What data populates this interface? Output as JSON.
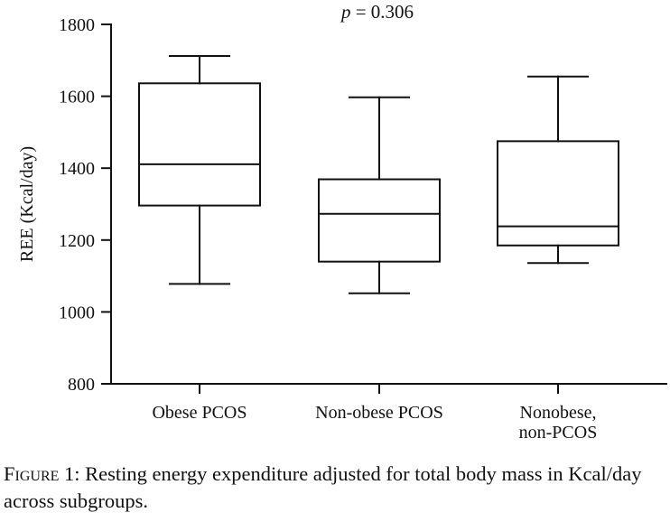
{
  "chart_data": {
    "type": "box",
    "annotation": {
      "prefix": "p",
      "text": " = 0.306"
    },
    "ylabel": "REE (Kcal/day)",
    "ylim": [
      800,
      1800
    ],
    "yticks": [
      800,
      1000,
      1200,
      1400,
      1600,
      1800
    ],
    "grid": false,
    "categories": [
      [
        "Obese PCOS"
      ],
      [
        "Non-obese PCOS"
      ],
      [
        "Nonobese,",
        "non-PCOS"
      ]
    ],
    "boxes": [
      {
        "min": 1078,
        "q1": 1296,
        "median": 1411,
        "q3": 1636,
        "max": 1712
      },
      {
        "min": 1052,
        "q1": 1140,
        "median": 1273,
        "q3": 1369,
        "max": 1597
      },
      {
        "min": 1136,
        "q1": 1185,
        "median": 1238,
        "q3": 1475,
        "max": 1655
      }
    ]
  },
  "caption": {
    "lead": "Figure 1",
    "text": ": Resting energy expenditure adjusted for total body mass in Kcal/day across subgroups."
  }
}
